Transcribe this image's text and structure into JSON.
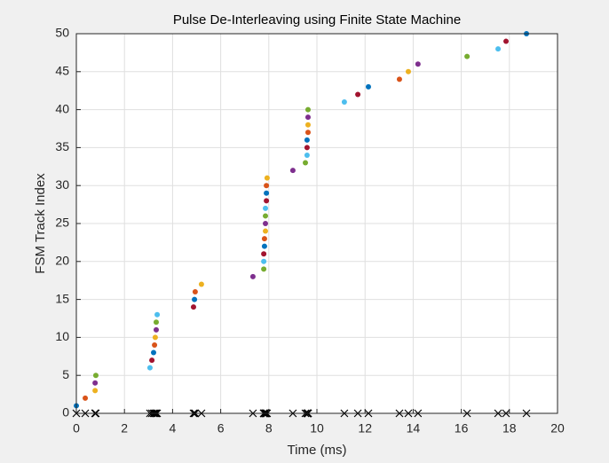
{
  "chart_data": {
    "type": "scatter",
    "title": "Pulse De-Interleaving using Finite State Machine",
    "x_label": "Time (ms)",
    "y_label": "FSM Track Index",
    "x": [
      0.0,
      0.37,
      0.78,
      0.78,
      0.81,
      3.06,
      3.14,
      3.21,
      3.25,
      3.28,
      3.32,
      3.32,
      3.36,
      4.87,
      4.91,
      4.94,
      5.2,
      7.34,
      7.79,
      7.79,
      7.79,
      7.82,
      7.82,
      7.86,
      7.86,
      7.86,
      7.86,
      7.9,
      7.9,
      7.9,
      7.93,
      9.0,
      9.52,
      9.59,
      9.59,
      9.59,
      9.63,
      9.63,
      9.63,
      9.63,
      11.14,
      11.7,
      12.14,
      13.43,
      13.8,
      14.2,
      16.24,
      17.53,
      17.86,
      18.71
    ],
    "values": [
      1,
      2,
      3,
      4,
      5,
      6,
      7,
      8,
      9,
      10,
      11,
      12,
      13,
      14,
      15,
      16,
      17,
      18,
      19,
      20,
      21,
      22,
      23,
      24,
      25,
      26,
      27,
      28,
      29,
      30,
      31,
      32,
      33,
      34,
      35,
      36,
      37,
      38,
      39,
      40,
      41,
      42,
      43,
      44,
      45,
      46,
      47,
      48,
      49,
      50
    ],
    "color_order": [
      "#0072bd",
      "#d95319",
      "#edb120",
      "#7e2f8e",
      "#77ac30",
      "#4dbeee",
      "#a2142f"
    ],
    "pulse_markers": true,
    "pulse_marker_color": "#000000",
    "xlim": [
      0,
      20
    ],
    "xticks": [
      0,
      2,
      4,
      6,
      8,
      10,
      12,
      14,
      16,
      18,
      20
    ],
    "ylim": [
      0,
      50
    ],
    "yticks": [
      0,
      5,
      10,
      15,
      20,
      25,
      30,
      35,
      40,
      45,
      50
    ],
    "grid": true
  }
}
